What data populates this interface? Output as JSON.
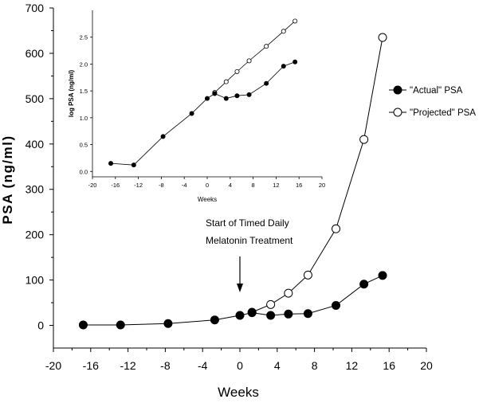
{
  "chart_data": [
    {
      "type": "line",
      "xlabel": "Weeks",
      "ylabel": "PSA (ng/ml)",
      "xlim": [
        -20,
        20
      ],
      "ylim": [
        -50,
        700
      ],
      "xticks": [
        -20,
        -16,
        -12,
        -8,
        -4,
        0,
        4,
        8,
        12,
        16,
        20
      ],
      "yticks": [
        0,
        100,
        200,
        300,
        400,
        500,
        600,
        700
      ],
      "grid": false,
      "legend_position": "right",
      "annotation": {
        "lines": [
          "Start of Timed Daily",
          "Melatonin Treatment"
        ],
        "arrow_x": 0
      },
      "series": [
        {
          "name": "\"Actual\" PSA",
          "marker": "filled-circle",
          "x": [
            -16.8,
            -12.8,
            -7.7,
            -2.7,
            0,
            1.3,
            3.3,
            5.2,
            7.3,
            10.3,
            13.3,
            15.3
          ],
          "y": [
            1,
            1,
            4,
            12,
            22,
            28,
            22,
            25,
            26,
            44,
            91,
            110
          ]
        },
        {
          "name": "\"Projected\" PSA",
          "marker": "open-circle",
          "x": [
            1.3,
            3.3,
            5.2,
            7.3,
            10.3,
            13.3,
            15.3
          ],
          "y": [
            29,
            46,
            71,
            111,
            213,
            410,
            635
          ]
        }
      ]
    },
    {
      "type": "line",
      "xlabel": "Weeks",
      "ylabel": "log PSA (ng/ml)",
      "xlim": [
        -20,
        20
      ],
      "ylim": [
        -0.1,
        3.0
      ],
      "xticks": [
        -20,
        -16,
        -12,
        -8,
        -4,
        0,
        4,
        8,
        12,
        16,
        20
      ],
      "yticks": [
        "0.0",
        "0.5",
        "1.0",
        "1.5",
        "2.0",
        "2.5"
      ],
      "grid": false,
      "series": [
        {
          "marker": "filled-circle",
          "x": [
            -16.8,
            -12.8,
            -7.7,
            -2.7,
            0,
            1.3,
            3.3,
            5.2,
            7.3,
            10.3,
            13.3,
            15.3
          ],
          "y": [
            0.15,
            0.12,
            0.65,
            1.08,
            1.36,
            1.45,
            1.36,
            1.41,
            1.43,
            1.64,
            1.96,
            2.04
          ]
        },
        {
          "marker": "open-circle",
          "x": [
            1.3,
            3.3,
            5.2,
            7.3,
            10.3,
            13.3,
            15.3
          ],
          "y": [
            1.47,
            1.67,
            1.86,
            2.06,
            2.33,
            2.61,
            2.8
          ]
        }
      ]
    }
  ]
}
